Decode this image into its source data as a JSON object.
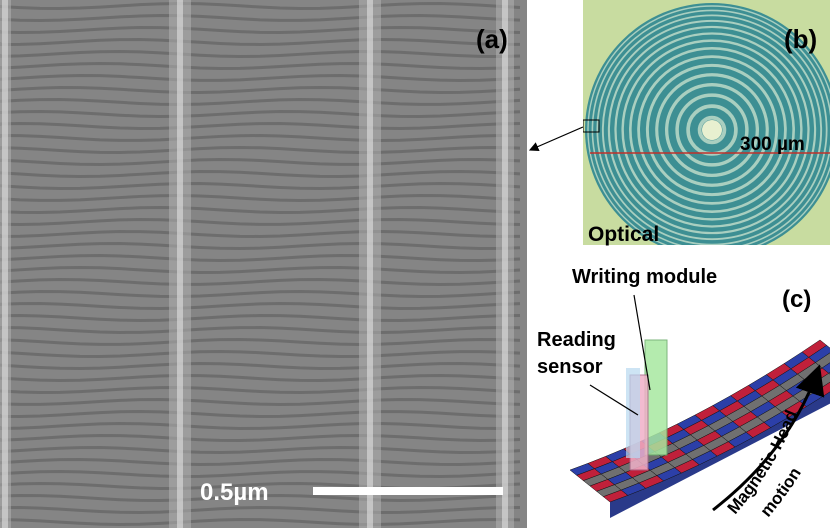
{
  "panels": [
    {
      "label": "(a)",
      "scale_bar": "0.5µm"
    },
    {
      "label": "(b)",
      "scale_label": "300 µm",
      "caption": "Optical"
    },
    {
      "label": "(c)",
      "writing": "Writing module",
      "reading": [
        "Reading",
        "sensor"
      ],
      "motion": [
        "Magnetic Head",
        "motion"
      ]
    }
  ]
}
